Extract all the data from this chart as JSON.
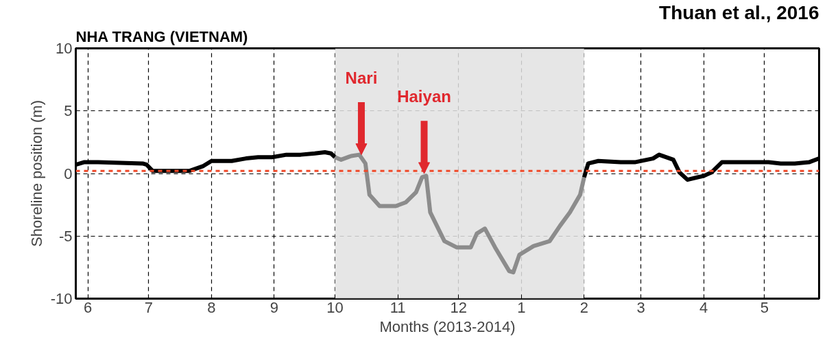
{
  "chart_data": {
    "type": "line",
    "title": "NHA TRANG (VIETNAM)",
    "xlabel": "Months (2013-2014)",
    "ylabel": "Shoreline position (m)",
    "annotations": [
      "Thuan et al., 2016",
      {
        "text": "Nari",
        "x": "2013-10-14",
        "y": 1.5
      },
      {
        "text": "Haiyan",
        "x": "2013-11-14",
        "y": 0
      }
    ],
    "xlim": [
      "2013-05-26",
      "2014-05-28"
    ],
    "ylim": [
      -10,
      10
    ],
    "xticks": [
      {
        "value": "2013-06",
        "label": "6"
      },
      {
        "value": "2013-07",
        "label": "7"
      },
      {
        "value": "2013-08",
        "label": "8"
      },
      {
        "value": "2013-09",
        "label": "9"
      },
      {
        "value": "2013-10",
        "label": "10"
      },
      {
        "value": "2013-11",
        "label": "11"
      },
      {
        "value": "2013-12",
        "label": "12"
      },
      {
        "value": "2014-01",
        "label": "1"
      },
      {
        "value": "2014-02",
        "label": "2"
      },
      {
        "value": "2014-03",
        "label": "3"
      },
      {
        "value": "2014-04",
        "label": "4"
      },
      {
        "value": "2014-05",
        "label": "5"
      }
    ],
    "yticks": [
      -10,
      -5,
      0,
      5,
      10
    ],
    "grid": true,
    "marker": "none",
    "line_style": "solid",
    "ref_lines": [
      {
        "axis": "y",
        "value": 0.2,
        "label": null,
        "color": "#f04a2a",
        "line_style": "dashed"
      }
    ],
    "bands": [
      {
        "axis": "x",
        "from": "2013-10",
        "to": "2014-02",
        "label": null,
        "color": "#e2e2e2"
      }
    ],
    "series": [
      {
        "color": "#000000",
        "x": [
          "2013-05-26",
          "2013-05-30",
          "2013-06-06",
          "2013-06-28",
          "2013-06-30",
          "2013-07-03",
          "2013-07-21",
          "2013-07-28",
          "2013-08-01",
          "2013-08-11",
          "2013-08-18",
          "2013-08-24",
          "2013-08-31",
          "2013-09-07",
          "2013-09-14",
          "2013-09-21",
          "2013-09-26",
          "2013-09-29",
          "2013-10-01"
        ],
        "values": [
          0.7,
          0.9,
          0.9,
          0.8,
          0.7,
          0.2,
          0.2,
          0.6,
          1.0,
          1.0,
          1.2,
          1.3,
          1.3,
          1.5,
          1.5,
          1.6,
          1.7,
          1.6,
          1.3
        ]
      },
      {
        "color": "#8c8c8c",
        "x": [
          "2013-10-01",
          "2013-10-04",
          "2013-10-09",
          "2013-10-13",
          "2013-10-16",
          "2013-10-18",
          "2013-10-23",
          "2013-10-31",
          "2013-11-05",
          "2013-11-10",
          "2013-11-13",
          "2013-11-15",
          "2013-11-17",
          "2013-11-24",
          "2013-11-30",
          "2013-12-07",
          "2013-12-10",
          "2013-12-14",
          "2013-12-19",
          "2013-12-26",
          "2013-12-28",
          "2013-12-31",
          "2014-01-07",
          "2014-01-15",
          "2014-01-20",
          "2014-01-25",
          "2014-01-30",
          "2014-02-01"
        ],
        "values": [
          1.3,
          1.1,
          1.4,
          1.5,
          0.8,
          -1.7,
          -2.6,
          -2.6,
          -2.3,
          -1.5,
          -0.3,
          -0.2,
          -3.1,
          -5.4,
          -5.9,
          -5.9,
          -4.8,
          -4.4,
          -5.9,
          -7.8,
          -7.9,
          -6.5,
          -5.8,
          -5.4,
          -4.2,
          -3.1,
          -1.7,
          -0.3
        ]
      },
      {
        "color": "#000000",
        "x": [
          "2014-02-01",
          "2014-02-03",
          "2014-02-08",
          "2014-02-19",
          "2014-02-26",
          "2014-03-07",
          "2014-03-10",
          "2014-03-17",
          "2014-03-20",
          "2014-03-24",
          "2014-03-29",
          "2014-04-01",
          "2014-04-05",
          "2014-04-10",
          "2014-04-20",
          "2014-05-03",
          "2014-05-09",
          "2014-05-16",
          "2014-05-23",
          "2014-05-28"
        ],
        "values": [
          -0.3,
          0.8,
          1.0,
          0.9,
          0.9,
          1.2,
          1.5,
          1.1,
          0.1,
          -0.5,
          -0.3,
          -0.2,
          0.1,
          0.9,
          0.9,
          0.9,
          0.8,
          0.8,
          0.9,
          1.2
        ]
      }
    ]
  }
}
